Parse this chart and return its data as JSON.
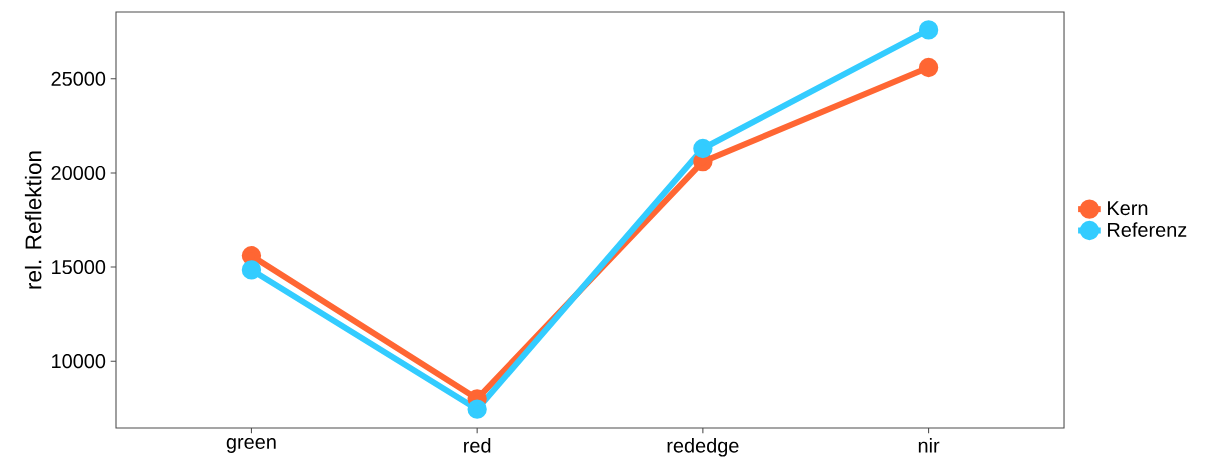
{
  "chart_data": {
    "type": "line",
    "ylabel": "rel. Reflektion",
    "categories": [
      "green",
      "red",
      "rededge",
      "nir"
    ],
    "series": [
      {
        "name": "Kern",
        "color": "#ff6633",
        "values": [
          15600,
          8000,
          20600,
          25600
        ]
      },
      {
        "name": "Referenz",
        "color": "#33ccff",
        "values": [
          14850,
          7450,
          21300,
          27600
        ]
      }
    ],
    "ylim": [
      6450,
      28550
    ],
    "yticks": [
      10000,
      15000,
      20000,
      25000
    ],
    "grid": false,
    "legend": "right",
    "marker": "circle",
    "line_style": "solid"
  }
}
